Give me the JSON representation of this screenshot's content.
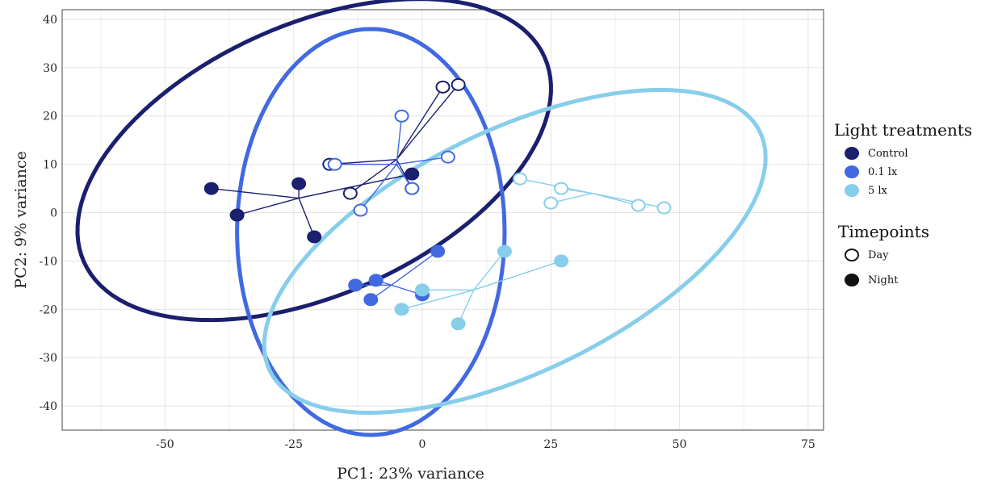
{
  "chart_data": {
    "type": "scatter",
    "xlabel": "PC1: 23% variance",
    "ylabel": "PC2: 9% variance",
    "xlim": [
      -70,
      78
    ],
    "ylim": [
      -45,
      42
    ],
    "xticks": [
      -50,
      -25,
      0,
      25,
      50,
      75
    ],
    "yticks": [
      40,
      30,
      20,
      10,
      0,
      -10,
      -20,
      -30,
      -40
    ],
    "grid": true,
    "legend_placement": "right",
    "legend_groups": [
      {
        "title": "Light treatments",
        "entries": [
          {
            "label": "Control",
            "color": "#1a1f6e",
            "fill": true
          },
          {
            "label": "0.1 lx",
            "color": "#4169e1",
            "fill": true
          },
          {
            "label": "5 lx",
            "color": "#87ceeb",
            "fill": true
          }
        ]
      },
      {
        "title": "Timepoints",
        "entries": [
          {
            "label": "Day",
            "color": "#111111",
            "fill": false
          },
          {
            "label": "Night",
            "color": "#111111",
            "fill": true
          }
        ]
      }
    ],
    "series": [
      {
        "treatment": "Control",
        "color": "#1a1f6e",
        "ellipse": {
          "cx": -21,
          "cy": 11,
          "rx": 49,
          "ry": 28,
          "angle_deg": 24
        },
        "day": {
          "centroid": [
            -5,
            11
          ],
          "points": [
            [
              4,
              26
            ],
            [
              7,
              26.5
            ],
            [
              -18,
              10
            ],
            [
              -14,
              4
            ],
            [
              -2,
              5
            ]
          ]
        },
        "night": {
          "centroid": [
            -24,
            3
          ],
          "points": [
            [
              -41,
              5
            ],
            [
              -36,
              -0.5
            ],
            [
              -24,
              6
            ],
            [
              -21,
              -5
            ],
            [
              -2,
              8
            ]
          ]
        }
      },
      {
        "treatment": "0.1 lx",
        "color": "#4169e1",
        "ellipse": {
          "cx": -10,
          "cy": -4,
          "rx": 26,
          "ry": 42,
          "angle_deg": 0
        },
        "day": {
          "centroid": [
            -5,
            10
          ],
          "points": [
            [
              -4,
              20
            ],
            [
              -17,
              10
            ],
            [
              -12,
              0.5
            ],
            [
              5,
              11.5
            ],
            [
              -2,
              5
            ]
          ]
        },
        "night": {
          "centroid": [
            -6,
            -15
          ],
          "points": [
            [
              -13,
              -15
            ],
            [
              -9,
              -14
            ],
            [
              -10,
              -18
            ],
            [
              3,
              -8
            ],
            [
              0,
              -17
            ]
          ]
        }
      },
      {
        "treatment": "5 lx",
        "color": "#87ceeb",
        "ellipse": {
          "cx": 18,
          "cy": -8,
          "rx": 53,
          "ry": 25,
          "angle_deg": 26
        },
        "day": {
          "centroid": [
            33,
            4
          ],
          "points": [
            [
              19,
              7
            ],
            [
              27,
              5
            ],
            [
              25,
              2
            ],
            [
              42,
              1.5
            ],
            [
              47,
              1
            ]
          ]
        },
        "night": {
          "centroid": [
            10,
            -16
          ],
          "points": [
            [
              16,
              -8
            ],
            [
              27,
              -10
            ],
            [
              0,
              -16
            ],
            [
              -4,
              -20
            ],
            [
              7,
              -23
            ]
          ]
        }
      }
    ]
  }
}
